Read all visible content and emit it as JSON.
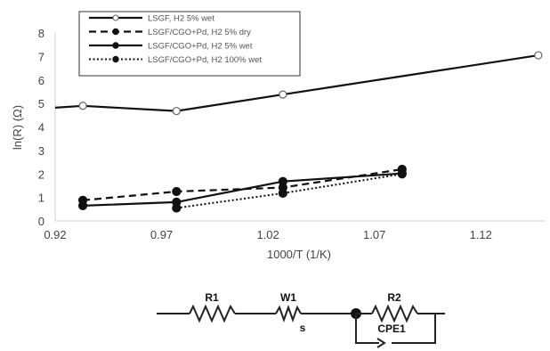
{
  "chart_data": {
    "type": "line",
    "xlabel": "1000/T (1/K)",
    "ylabel": "ln(R) (Ω)",
    "xlim": [
      0.92,
      1.15
    ],
    "ylim": [
      0,
      8
    ],
    "xticks": [
      "0.92",
      "0.97",
      "1.02",
      "1.07",
      "1.12"
    ],
    "yticks": [
      "0",
      "1",
      "2",
      "3",
      "4",
      "5",
      "6",
      "7",
      "8"
    ],
    "grid": false,
    "legend_position": "top",
    "series": [
      {
        "name": "LSGF, H2 5% wet",
        "line": "solid",
        "marker": "open-circle",
        "points": [
          [
            0.92,
            4.82
          ],
          [
            0.933,
            4.9
          ],
          [
            0.977,
            4.68
          ],
          [
            1.027,
            5.38
          ],
          [
            1.147,
            7.05
          ]
        ]
      },
      {
        "name": "LSGF/CGO+Pd, H2 5% dry",
        "line": "dashed",
        "marker": "filled-circle",
        "points": [
          [
            0.933,
            0.88
          ],
          [
            0.977,
            1.25
          ],
          [
            1.027,
            1.42
          ],
          [
            1.083,
            2.2
          ]
        ]
      },
      {
        "name": "LSGF/CGO+Pd, H2 5% wet",
        "line": "solid",
        "marker": "filled-circle",
        "points": [
          [
            0.933,
            0.65
          ],
          [
            0.977,
            0.8
          ],
          [
            1.027,
            1.68
          ],
          [
            1.083,
            2.02
          ]
        ]
      },
      {
        "name": "LSGF/CGO+Pd, H2 100% wet",
        "line": "dotted",
        "marker": "filled-circle",
        "points": [
          [
            0.977,
            0.55
          ],
          [
            1.027,
            1.18
          ],
          [
            1.083,
            2.0
          ]
        ]
      }
    ]
  },
  "circuit": {
    "labels": [
      "R1",
      "W1",
      "R2",
      "CPE1"
    ],
    "subscript": "s"
  }
}
